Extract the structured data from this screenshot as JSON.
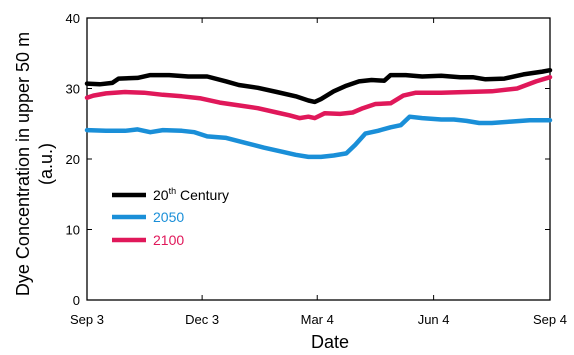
{
  "chart_data": {
    "type": "line",
    "title": "",
    "xlabel": "Date",
    "ylabel": [
      "Dye Concentration in upper 50 m",
      "(a.u.)"
    ],
    "ylim": [
      0,
      40
    ],
    "yticks": [
      0,
      10,
      20,
      30,
      40
    ],
    "xlim": [
      0,
      366
    ],
    "xticks": [
      {
        "label": "Sep 3",
        "day": 0
      },
      {
        "label": "Dec 3",
        "day": 91
      },
      {
        "label": "Mar 4",
        "day": 182
      },
      {
        "label": "Jun 4",
        "day": 274
      },
      {
        "label": "Sep 4",
        "day": 366
      }
    ],
    "grid": false,
    "legend_position": "center-left",
    "series": [
      {
        "name": "20th Century",
        "name_parts": {
          "base": "20",
          "sup": "th",
          "rest": " Century"
        },
        "color": "#000000",
        "points": [
          [
            0,
            30.7
          ],
          [
            10,
            30.6
          ],
          [
            20,
            30.8
          ],
          [
            25,
            31.4
          ],
          [
            40,
            31.5
          ],
          [
            50,
            31.9
          ],
          [
            65,
            31.9
          ],
          [
            80,
            31.7
          ],
          [
            95,
            31.7
          ],
          [
            110,
            31.0
          ],
          [
            120,
            30.5
          ],
          [
            135,
            30.1
          ],
          [
            150,
            29.5
          ],
          [
            165,
            28.9
          ],
          [
            175,
            28.3
          ],
          [
            180,
            28.1
          ],
          [
            185,
            28.5
          ],
          [
            195,
            29.6
          ],
          [
            205,
            30.4
          ],
          [
            215,
            31.0
          ],
          [
            225,
            31.2
          ],
          [
            235,
            31.1
          ],
          [
            240,
            31.9
          ],
          [
            252,
            31.9
          ],
          [
            265,
            31.7
          ],
          [
            280,
            31.8
          ],
          [
            295,
            31.6
          ],
          [
            305,
            31.6
          ],
          [
            315,
            31.3
          ],
          [
            330,
            31.4
          ],
          [
            345,
            32.0
          ],
          [
            360,
            32.4
          ],
          [
            366,
            32.6
          ]
        ]
      },
      {
        "name": "2050",
        "color": "#1a8fd8",
        "points": [
          [
            0,
            24.1
          ],
          [
            15,
            24.0
          ],
          [
            30,
            24.0
          ],
          [
            40,
            24.2
          ],
          [
            50,
            23.8
          ],
          [
            60,
            24.1
          ],
          [
            75,
            24.0
          ],
          [
            85,
            23.8
          ],
          [
            95,
            23.2
          ],
          [
            110,
            23.0
          ],
          [
            125,
            22.3
          ],
          [
            140,
            21.6
          ],
          [
            155,
            21.0
          ],
          [
            165,
            20.6
          ],
          [
            175,
            20.3
          ],
          [
            185,
            20.3
          ],
          [
            195,
            20.5
          ],
          [
            205,
            20.8
          ],
          [
            212,
            22.0
          ],
          [
            220,
            23.6
          ],
          [
            230,
            24.0
          ],
          [
            240,
            24.5
          ],
          [
            248,
            24.8
          ],
          [
            255,
            26.0
          ],
          [
            265,
            25.8
          ],
          [
            280,
            25.6
          ],
          [
            290,
            25.6
          ],
          [
            300,
            25.4
          ],
          [
            310,
            25.1
          ],
          [
            320,
            25.1
          ],
          [
            335,
            25.3
          ],
          [
            350,
            25.5
          ],
          [
            366,
            25.5
          ]
        ]
      },
      {
        "name": "2100",
        "color": "#e0185a",
        "points": [
          [
            0,
            28.7
          ],
          [
            5,
            29.0
          ],
          [
            15,
            29.3
          ],
          [
            30,
            29.5
          ],
          [
            45,
            29.4
          ],
          [
            60,
            29.1
          ],
          [
            75,
            28.9
          ],
          [
            90,
            28.6
          ],
          [
            105,
            28.0
          ],
          [
            120,
            27.6
          ],
          [
            135,
            27.2
          ],
          [
            150,
            26.6
          ],
          [
            160,
            26.2
          ],
          [
            168,
            25.8
          ],
          [
            175,
            26.0
          ],
          [
            180,
            25.8
          ],
          [
            188,
            26.5
          ],
          [
            200,
            26.4
          ],
          [
            210,
            26.6
          ],
          [
            218,
            27.2
          ],
          [
            228,
            27.8
          ],
          [
            240,
            27.9
          ],
          [
            250,
            29.0
          ],
          [
            260,
            29.4
          ],
          [
            280,
            29.4
          ],
          [
            300,
            29.5
          ],
          [
            320,
            29.6
          ],
          [
            340,
            30.0
          ],
          [
            355,
            31.0
          ],
          [
            366,
            31.6
          ]
        ]
      }
    ]
  }
}
